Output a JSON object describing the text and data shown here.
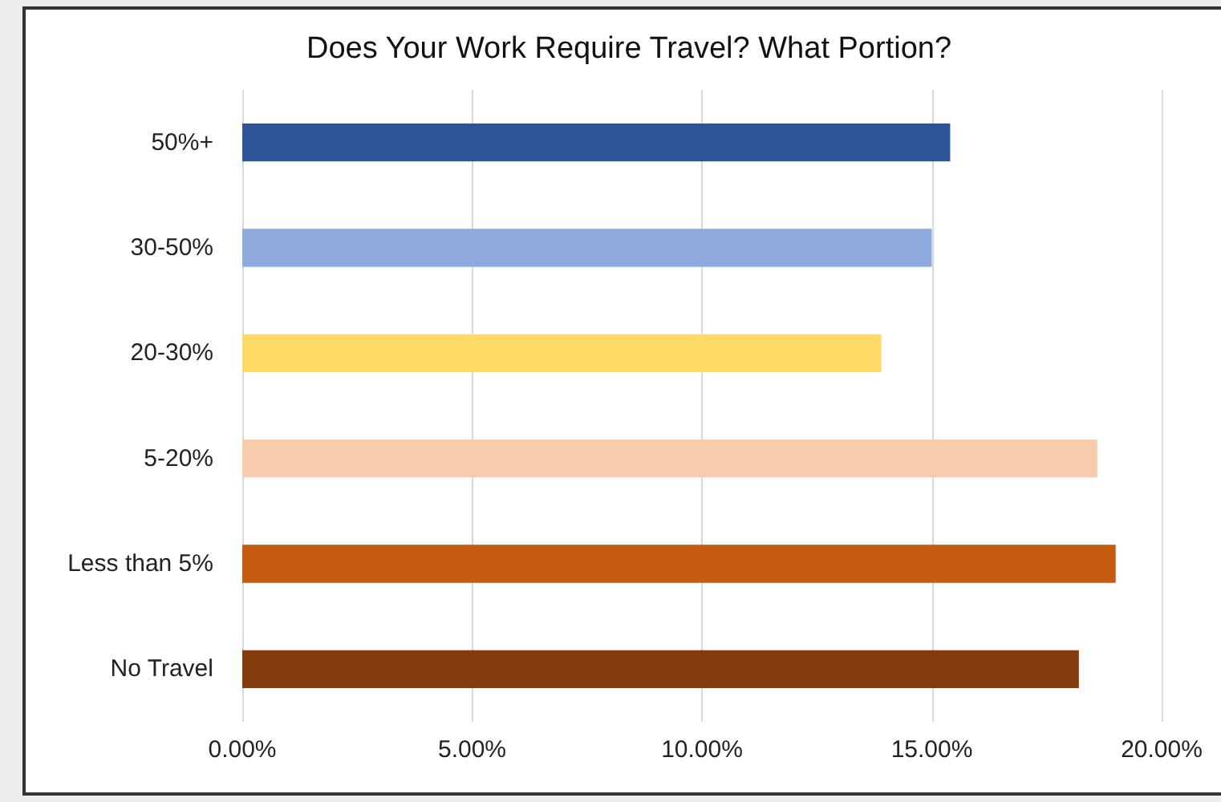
{
  "chart_data": {
    "type": "bar",
    "orientation": "horizontal",
    "title": "Does Your Work Require Travel? What Portion?",
    "categories": [
      "50%+",
      "30-50%",
      "20-30%",
      "5-20%",
      "Less than 5%",
      "No Travel"
    ],
    "values": [
      15.4,
      15.0,
      13.9,
      18.6,
      19.0,
      18.2
    ],
    "colors": [
      "#2f5597",
      "#8faadc",
      "#ffd966",
      "#f8cbad",
      "#c55a11",
      "#843c0c"
    ],
    "xlim": [
      0,
      20
    ],
    "xticks": [
      {
        "value": 0,
        "label": "0.00%"
      },
      {
        "value": 5,
        "label": "5.00%"
      },
      {
        "value": 10,
        "label": "10.00%"
      },
      {
        "value": 15,
        "label": "15.00%"
      },
      {
        "value": 20,
        "label": "20.00%"
      }
    ],
    "grid": "x"
  }
}
